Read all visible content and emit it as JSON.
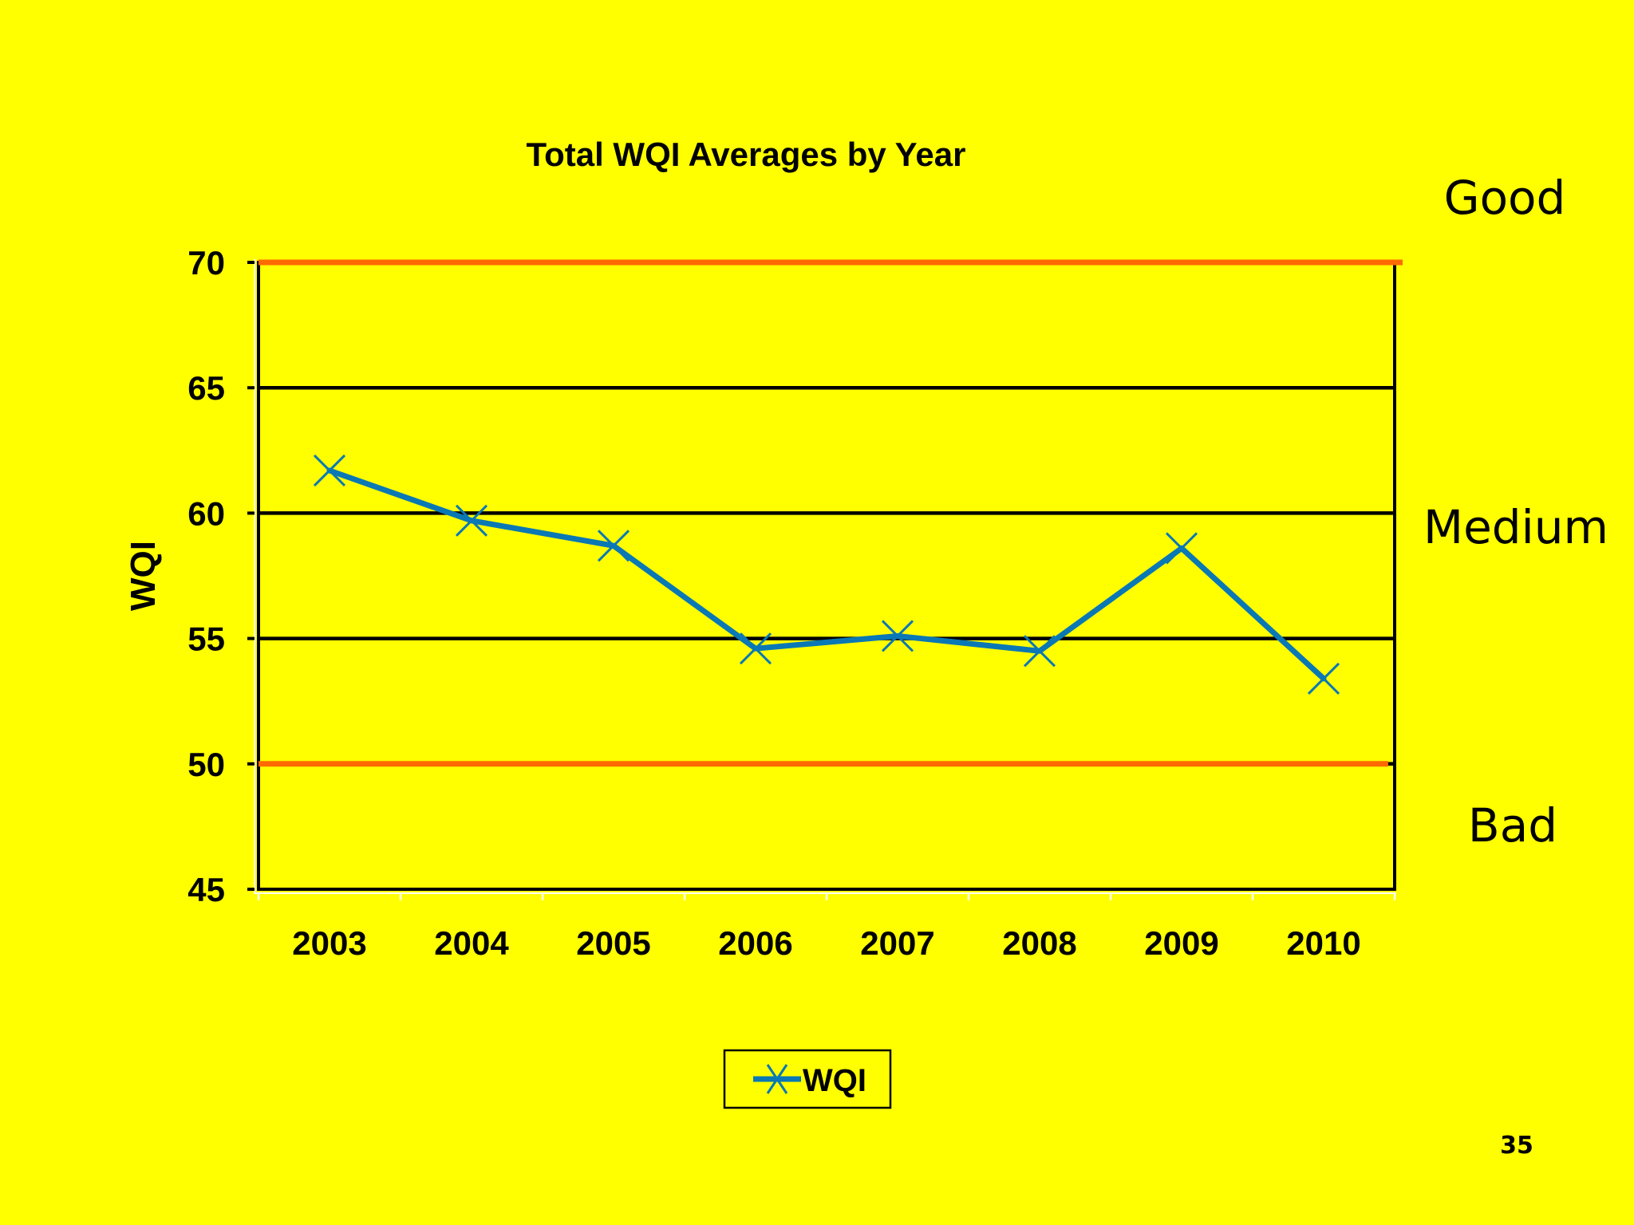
{
  "chart_data": {
    "type": "line",
    "title": "Total WQI Averages by Year",
    "xlabel": "",
    "ylabel": "WQI",
    "categories": [
      "2003",
      "2004",
      "2005",
      "2006",
      "2007",
      "2008",
      "2009",
      "2010"
    ],
    "series": [
      {
        "name": "WQI",
        "values": [
          61.7,
          59.7,
          58.7,
          54.6,
          55.1,
          54.5,
          58.6,
          53.4
        ],
        "color": "#0a78b4"
      }
    ],
    "ylim": [
      45,
      70
    ],
    "yticks": [
      "45",
      "50",
      "55",
      "60",
      "65",
      "70"
    ],
    "grid": true,
    "legend": "bottom-center",
    "thresholds": [
      {
        "value": 70,
        "color": "#ff6a00"
      },
      {
        "value": 50,
        "color": "#ff6a00"
      }
    ],
    "zones": [
      {
        "label": "Good"
      },
      {
        "label": "Medium"
      },
      {
        "label": "Bad"
      }
    ]
  },
  "page_number": "35"
}
